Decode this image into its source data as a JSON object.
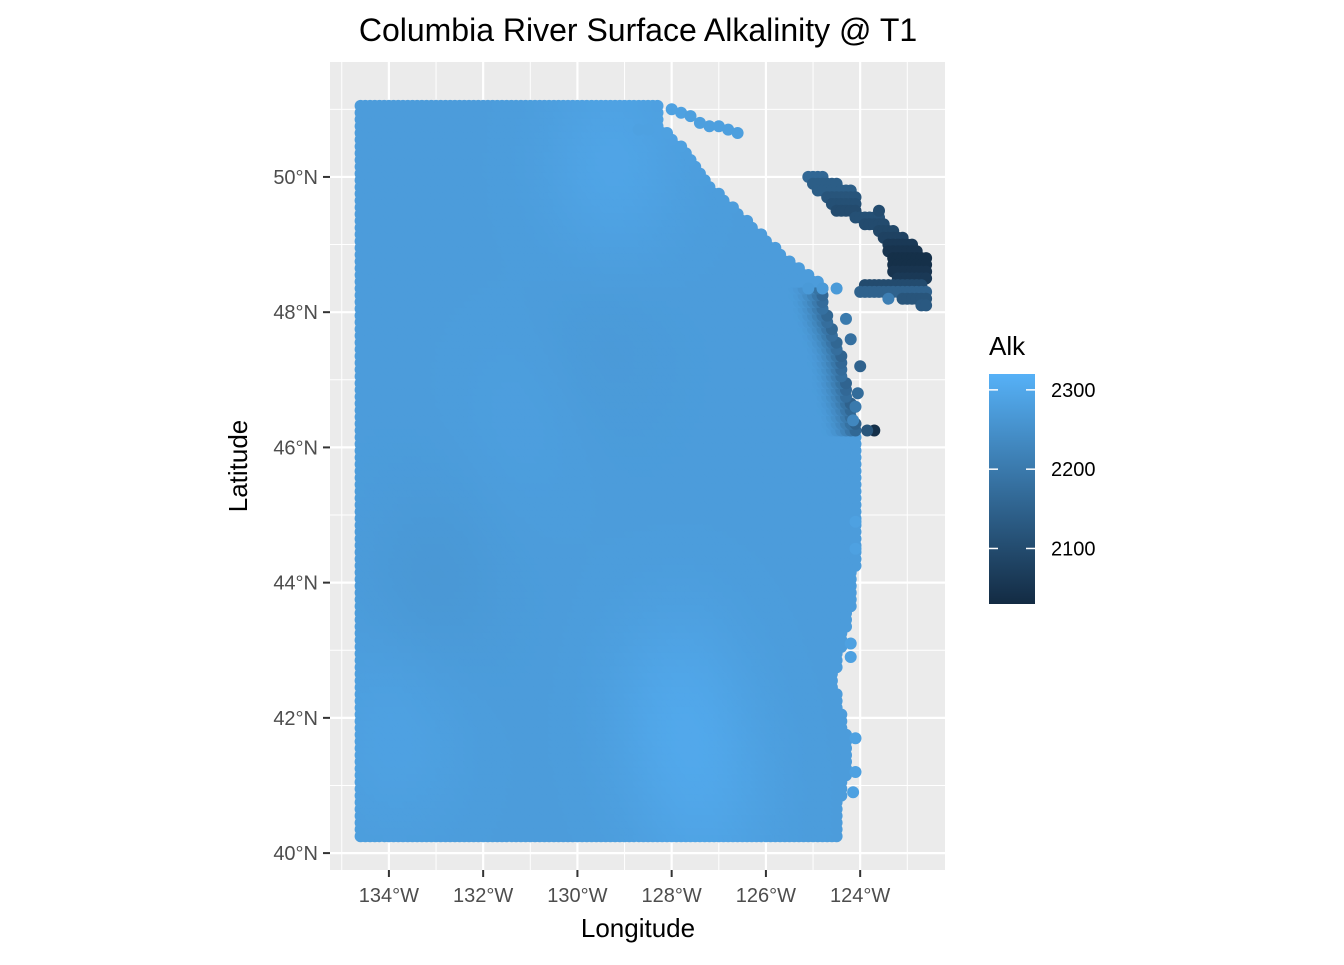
{
  "chart_data": {
    "type": "scatter",
    "title": "Columbia River Surface Alkalinity @ T1",
    "xlabel": "Longitude",
    "ylabel": "Latitude",
    "xlim": [
      -135.25,
      -122.2
    ],
    "ylim": [
      39.75,
      51.7
    ],
    "x_ticks": [
      -134,
      -132,
      -130,
      -128,
      -126,
      -124
    ],
    "x_tick_labels": [
      "134°W",
      "132°W",
      "130°W",
      "128°W",
      "126°W",
      "124°W"
    ],
    "y_ticks": [
      40,
      42,
      44,
      46,
      48,
      50
    ],
    "y_tick_labels": [
      "40°N",
      "42°N",
      "44°N",
      "46°N",
      "48°N",
      "50°N"
    ],
    "grid": true,
    "panel_background": "#ebebeb",
    "legend": {
      "title": "Alk",
      "position": "right",
      "range": [
        2030,
        2320
      ],
      "breaks": [
        2100,
        2200,
        2300
      ],
      "break_labels": [
        "2100",
        "2200",
        "2300"
      ],
      "low_color": "#132b43",
      "high_color": "#56b1f7"
    },
    "grid_step_deg": 0.1,
    "main_region": {
      "value": 2275,
      "lat_range": [
        40.25,
        51.1
      ],
      "west_lon": -134.6,
      "east_edge": [
        {
          "lat": 40.25,
          "lon": -124.5
        },
        {
          "lat": 40.8,
          "lon": -124.4
        },
        {
          "lat": 41.4,
          "lon": -124.2
        },
        {
          "lat": 42.0,
          "lon": -124.35
        },
        {
          "lat": 42.5,
          "lon": -124.55
        },
        {
          "lat": 43.2,
          "lon": -124.35
        },
        {
          "lat": 43.8,
          "lon": -124.15
        },
        {
          "lat": 44.6,
          "lon": -124.05
        },
        {
          "lat": 45.5,
          "lon": -124.0
        },
        {
          "lat": 46.2,
          "lon": -124.05
        },
        {
          "lat": 46.8,
          "lon": -124.25
        },
        {
          "lat": 47.4,
          "lon": -124.4
        },
        {
          "lat": 48.0,
          "lon": -124.7
        },
        {
          "lat": 48.4,
          "lon": -124.8
        },
        {
          "lat": 48.7,
          "lon": -125.4
        },
        {
          "lat": 49.1,
          "lon": -126.0
        },
        {
          "lat": 49.5,
          "lon": -126.6
        },
        {
          "lat": 49.9,
          "lon": -127.2
        },
        {
          "lat": 50.4,
          "lon": -127.7
        },
        {
          "lat": 50.8,
          "lon": -128.3
        },
        {
          "lat": 51.1,
          "lon": -128.3
        }
      ]
    },
    "field_anomalies": [
      {
        "lon": -129.2,
        "lat": 50.2,
        "dv": 18
      },
      {
        "lon": -131.0,
        "lat": 46.5,
        "dv": 6
      },
      {
        "lon": -127.8,
        "lat": 42.2,
        "dv": 20
      },
      {
        "lon": -127.2,
        "lat": 40.7,
        "dv": 15
      },
      {
        "lon": -133.8,
        "lat": 41.8,
        "dv": 12
      },
      {
        "lon": -133.0,
        "lat": 44.0,
        "dv": -10
      },
      {
        "lon": -129.5,
        "lat": 47.5,
        "dv": -6
      }
    ],
    "coastal_gradient": {
      "width_deg": 0.7,
      "lat_min": 46.2,
      "lat_max": 48.4,
      "min_value": 2150
    },
    "extra_points": [
      {
        "lon": -128.0,
        "lat": 51.0,
        "value": 2285
      },
      {
        "lon": -127.8,
        "lat": 50.95,
        "value": 2285
      },
      {
        "lon": -127.6,
        "lat": 50.9,
        "value": 2280
      },
      {
        "lon": -127.4,
        "lat": 50.8,
        "value": 2280
      },
      {
        "lon": -127.2,
        "lat": 50.75,
        "value": 2280
      },
      {
        "lon": -127.0,
        "lat": 50.75,
        "value": 2280
      },
      {
        "lon": -126.8,
        "lat": 50.7,
        "value": 2280
      },
      {
        "lon": -126.6,
        "lat": 50.65,
        "value": 2280
      },
      {
        "lon": -128.7,
        "lat": 50.7,
        "value": 2285
      },
      {
        "lon": -128.5,
        "lat": 50.7,
        "value": 2285
      },
      {
        "lon": -125.1,
        "lat": 48.35,
        "value": 2270
      },
      {
        "lon": -124.8,
        "lat": 48.35,
        "value": 2270
      },
      {
        "lon": -124.5,
        "lat": 48.35,
        "value": 2270
      },
      {
        "lon": -123.4,
        "lat": 48.2,
        "value": 2210
      },
      {
        "lon": -123.7,
        "lat": 46.25,
        "value": 2040
      },
      {
        "lon": -123.85,
        "lat": 46.25,
        "value": 2120
      },
      {
        "lon": -124.0,
        "lat": 47.2,
        "value": 2150
      },
      {
        "lon": -124.05,
        "lat": 46.8,
        "value": 2170
      },
      {
        "lon": -124.1,
        "lat": 46.6,
        "value": 2200
      },
      {
        "lon": -124.15,
        "lat": 46.4,
        "value": 2230
      },
      {
        "lon": -124.2,
        "lat": 47.6,
        "value": 2180
      },
      {
        "lon": -124.3,
        "lat": 47.9,
        "value": 2200
      },
      {
        "lon": -124.2,
        "lat": 43.1,
        "value": 2285
      },
      {
        "lon": -124.2,
        "lat": 42.9,
        "value": 2285
      },
      {
        "lon": -124.1,
        "lat": 41.7,
        "value": 2285
      },
      {
        "lon": -124.1,
        "lat": 41.2,
        "value": 2285
      },
      {
        "lon": -124.15,
        "lat": 40.9,
        "value": 2285
      },
      {
        "lon": -124.1,
        "lat": 44.5,
        "value": 2285
      },
      {
        "lon": -124.1,
        "lat": 44.9,
        "value": 2285
      },
      {
        "lon": -123.6,
        "lat": 49.5,
        "value": 2100
      }
    ],
    "strait_region": {
      "rows": [
        {
          "lat": 50.0,
          "lon_start": -125.1,
          "lon_end": -124.8,
          "value": 2160
        },
        {
          "lat": 49.9,
          "lon_start": -125.0,
          "lon_end": -124.5,
          "value": 2140
        },
        {
          "lat": 49.8,
          "lon_start": -124.9,
          "lon_end": -124.2,
          "value": 2140
        },
        {
          "lat": 49.7,
          "lon_start": -124.7,
          "lon_end": -124.1,
          "value": 2120
        },
        {
          "lat": 49.6,
          "lon_start": -124.6,
          "lon_end": -124.1,
          "value": 2110
        },
        {
          "lat": 49.5,
          "lon_start": -124.5,
          "lon_end": -124.1,
          "value": 2100
        },
        {
          "lat": 49.4,
          "lon_start": -124.1,
          "lon_end": -123.6,
          "value": 2110
        },
        {
          "lat": 49.3,
          "lon_start": -123.9,
          "lon_end": -123.5,
          "value": 2100
        },
        {
          "lat": 49.2,
          "lon_start": -123.6,
          "lon_end": -123.3,
          "value": 2090
        },
        {
          "lat": 49.1,
          "lon_start": -123.5,
          "lon_end": -123.1,
          "value": 2080
        },
        {
          "lat": 49.0,
          "lon_start": -123.4,
          "lon_end": -122.9,
          "value": 2060
        },
        {
          "lat": 48.9,
          "lon_start": -123.4,
          "lon_end": -122.8,
          "value": 2050
        },
        {
          "lat": 48.8,
          "lon_start": -123.3,
          "lon_end": -122.6,
          "value": 2040
        },
        {
          "lat": 48.7,
          "lon_start": -123.3,
          "lon_end": -122.6,
          "value": 2040
        },
        {
          "lat": 48.6,
          "lon_start": -123.3,
          "lon_end": -122.6,
          "value": 2050
        },
        {
          "lat": 48.5,
          "lon_start": -123.2,
          "lon_end": -122.6,
          "value": 2060
        },
        {
          "lat": 48.4,
          "lon_start": -123.9,
          "lon_end": -122.7,
          "value": 2100
        },
        {
          "lat": 48.3,
          "lon_start": -124.0,
          "lon_end": -122.6,
          "value": 2150
        },
        {
          "lat": 48.2,
          "lon_start": -123.1,
          "lon_end": -122.6,
          "value": 2120
        },
        {
          "lat": 48.1,
          "lon_start": -122.7,
          "lon_end": -122.6,
          "value": 2130
        }
      ]
    }
  }
}
